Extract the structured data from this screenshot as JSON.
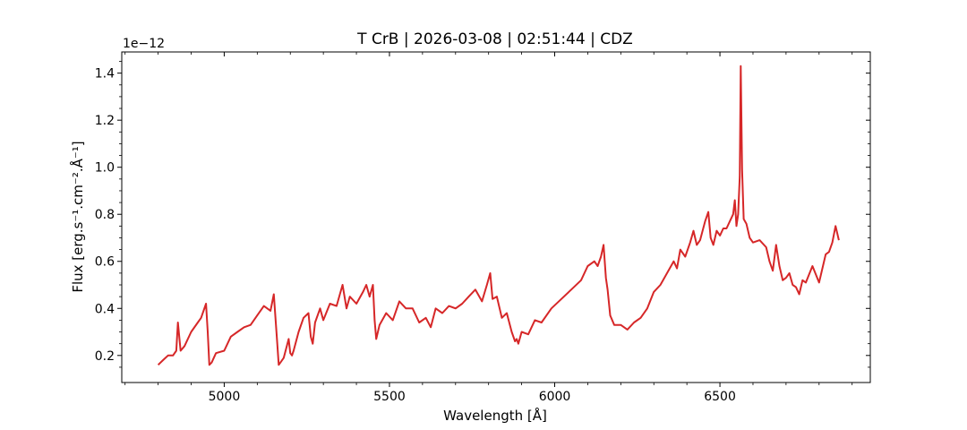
{
  "chart_data": {
    "type": "line",
    "title": "T CrB | 2026-03-08 | 02:51:44 | CDZ",
    "xlabel": "Wavelength [Å]",
    "ylabel": "Flux [erg.s⁻¹.cm⁻².Å⁻¹]",
    "y_offset_text": "1e−12",
    "xlim": [
      4690,
      6955
    ],
    "ylim": [
      0.085,
      1.49
    ],
    "y_scale_factor": 1e-12,
    "x_ticks": [
      5000,
      5500,
      6000,
      6500
    ],
    "x_tick_labels": [
      "5000",
      "5500",
      "6000",
      "6500"
    ],
    "y_ticks": [
      0.2,
      0.4,
      0.6,
      0.8,
      1.0,
      1.2,
      1.4
    ],
    "y_tick_labels": [
      "0.2",
      "0.4",
      "0.6",
      "0.8",
      "1.0",
      "1.2",
      "1.4"
    ],
    "grid": false,
    "series_color": "#d62728",
    "series": [
      {
        "x": [
          4800,
          4815,
          4830,
          4845,
          4855,
          4860,
          4868,
          4880,
          4900,
          4920,
          4930,
          4945,
          4950,
          4955,
          4962,
          4975,
          5000,
          5020,
          5040,
          5060,
          5080,
          5100,
          5120,
          5140,
          5150,
          5160,
          5165,
          5170,
          5180,
          5195,
          5200,
          5205,
          5210,
          5225,
          5240,
          5255,
          5262,
          5268,
          5275,
          5290,
          5300,
          5320,
          5340,
          5350,
          5358,
          5370,
          5380,
          5400,
          5420,
          5430,
          5440,
          5450,
          5455,
          5460,
          5470,
          5490,
          5510,
          5530,
          5550,
          5570,
          5590,
          5610,
          5625,
          5640,
          5660,
          5680,
          5700,
          5720,
          5740,
          5760,
          5780,
          5795,
          5805,
          5812,
          5825,
          5840,
          5855,
          5870,
          5880,
          5885,
          5890,
          5900,
          5920,
          5940,
          5960,
          5990,
          6020,
          6050,
          6080,
          6100,
          6120,
          6130,
          6140,
          6148,
          6155,
          6160,
          6168,
          6180,
          6200,
          6220,
          6240,
          6260,
          6280,
          6300,
          6320,
          6340,
          6360,
          6370,
          6380,
          6395,
          6410,
          6420,
          6430,
          6440,
          6455,
          6465,
          6472,
          6480,
          6490,
          6500,
          6510,
          6520,
          6530,
          6540,
          6545,
          6550,
          6555,
          6560,
          6563,
          6567,
          6572,
          6580,
          6590,
          6600,
          6620,
          6640,
          6650,
          6660,
          6670,
          6680,
          6690,
          6700,
          6710,
          6720,
          6730,
          6740,
          6750,
          6760,
          6780,
          6800,
          6820,
          6830,
          6840,
          6850,
          6860
        ],
        "y": [
          0.16,
          0.18,
          0.2,
          0.2,
          0.22,
          0.34,
          0.22,
          0.24,
          0.3,
          0.34,
          0.36,
          0.42,
          0.3,
          0.16,
          0.17,
          0.21,
          0.22,
          0.28,
          0.3,
          0.32,
          0.33,
          0.37,
          0.41,
          0.39,
          0.46,
          0.26,
          0.16,
          0.17,
          0.19,
          0.27,
          0.21,
          0.2,
          0.22,
          0.3,
          0.36,
          0.38,
          0.28,
          0.25,
          0.34,
          0.4,
          0.35,
          0.42,
          0.41,
          0.46,
          0.5,
          0.4,
          0.45,
          0.42,
          0.47,
          0.5,
          0.45,
          0.5,
          0.35,
          0.27,
          0.33,
          0.38,
          0.35,
          0.43,
          0.4,
          0.4,
          0.34,
          0.36,
          0.32,
          0.4,
          0.38,
          0.41,
          0.4,
          0.42,
          0.45,
          0.48,
          0.43,
          0.5,
          0.55,
          0.44,
          0.45,
          0.36,
          0.38,
          0.3,
          0.26,
          0.27,
          0.25,
          0.3,
          0.29,
          0.35,
          0.34,
          0.4,
          0.44,
          0.48,
          0.52,
          0.58,
          0.6,
          0.58,
          0.62,
          0.67,
          0.53,
          0.48,
          0.37,
          0.33,
          0.33,
          0.31,
          0.34,
          0.36,
          0.4,
          0.47,
          0.5,
          0.55,
          0.6,
          0.57,
          0.65,
          0.62,
          0.68,
          0.73,
          0.67,
          0.69,
          0.77,
          0.81,
          0.7,
          0.67,
          0.73,
          0.71,
          0.74,
          0.74,
          0.77,
          0.8,
          0.86,
          0.75,
          0.8,
          0.96,
          1.43,
          0.99,
          0.78,
          0.76,
          0.7,
          0.68,
          0.69,
          0.66,
          0.6,
          0.56,
          0.67,
          0.58,
          0.52,
          0.53,
          0.55,
          0.5,
          0.49,
          0.46,
          0.52,
          0.51,
          0.58,
          0.51,
          0.63,
          0.64,
          0.68,
          0.75,
          0.69
        ]
      }
    ]
  }
}
